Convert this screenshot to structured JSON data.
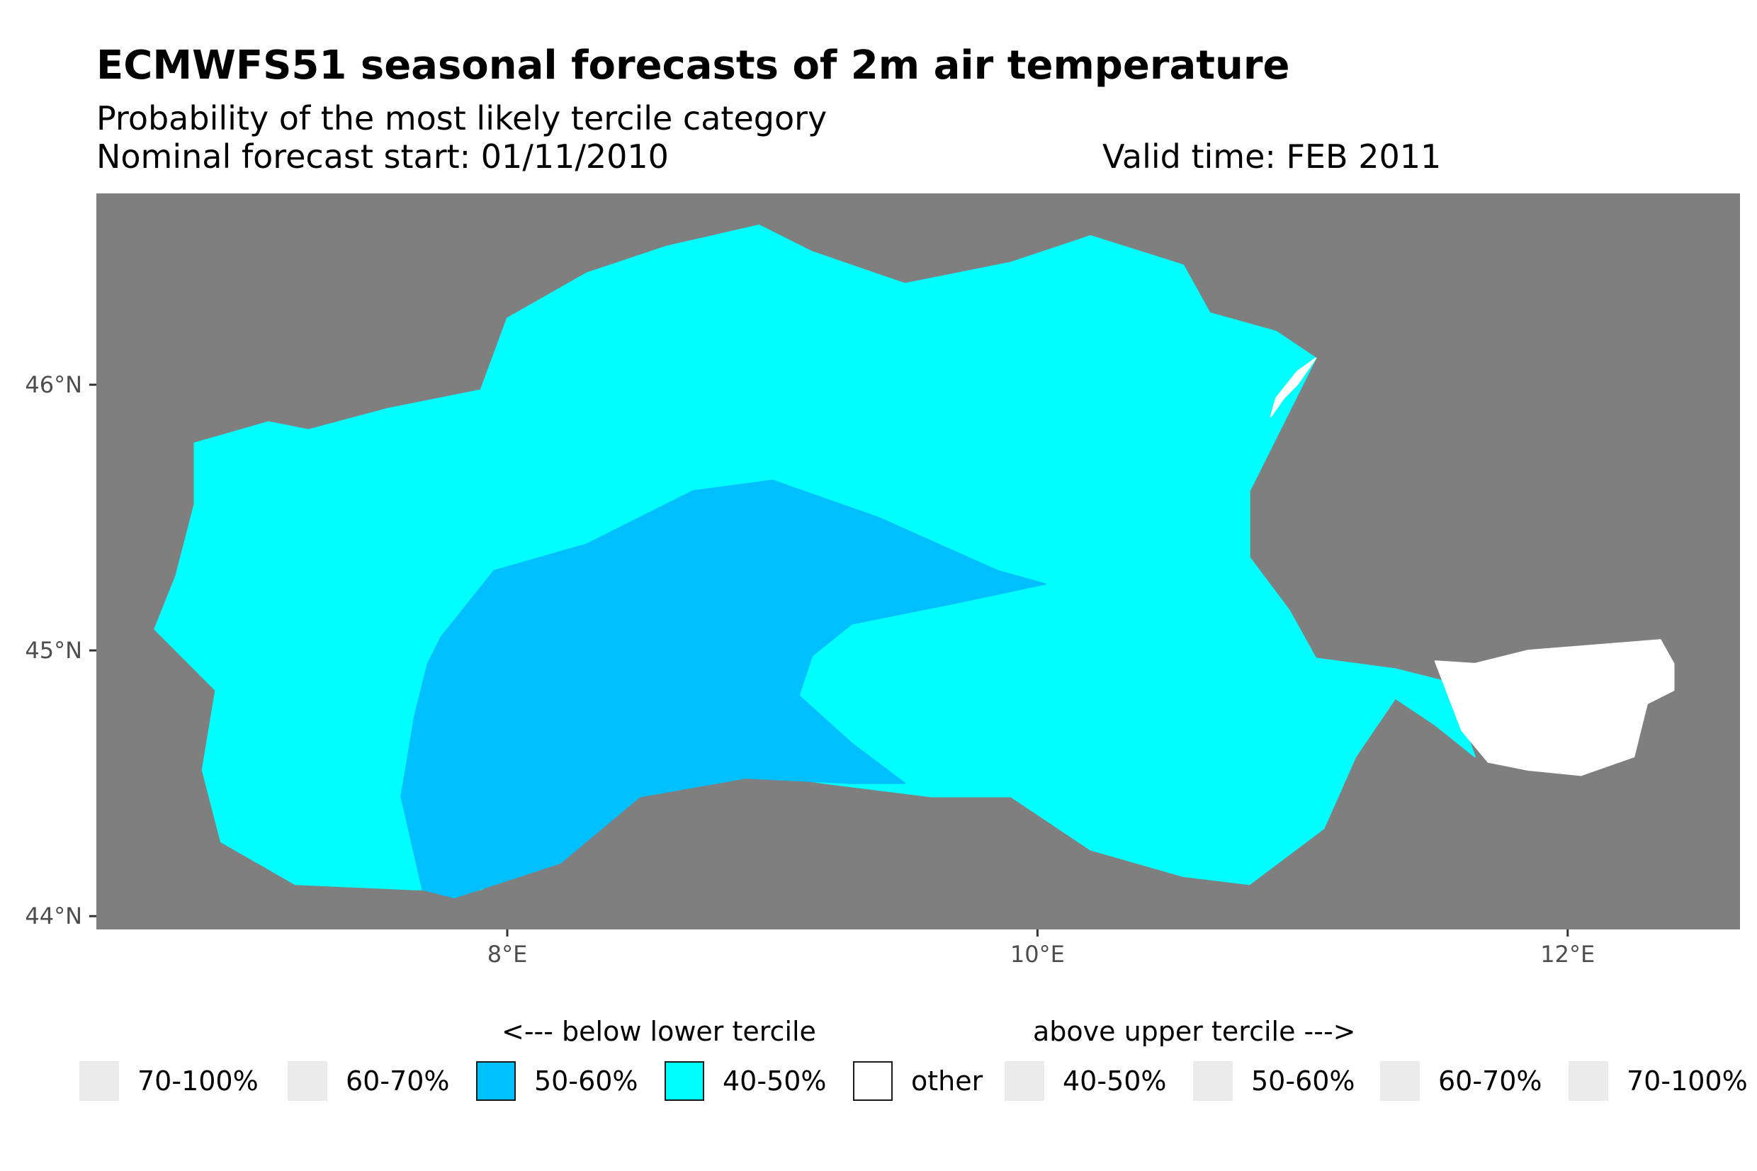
{
  "chart_data": {
    "type": "map",
    "title": "ECMWFS51 seasonal forecasts of 2m air temperature",
    "subtitle": "Probability of the most likely tercile category",
    "forecast_start": "Nominal forecast start: 01/11/2010",
    "valid_time": "Valid time: FEB 2011",
    "x_axis": {
      "range": [
        6.45,
        12.65
      ],
      "ticks": [
        8,
        10,
        12
      ],
      "tick_labels": [
        "8°E",
        "10°E",
        "12°E"
      ]
    },
    "y_axis": {
      "range": [
        43.95,
        46.72
      ],
      "ticks": [
        44,
        45,
        46
      ],
      "tick_labels": [
        "44°N",
        "45°N",
        "46°N"
      ]
    },
    "regions": [
      {
        "category": "40-50% below lower tercile",
        "color": "#00FFFF",
        "polygon": [
          [
            6.82,
            45.78
          ],
          [
            7.1,
            45.86
          ],
          [
            7.25,
            45.83
          ],
          [
            7.55,
            45.91
          ],
          [
            7.9,
            45.98
          ],
          [
            8.0,
            46.25
          ],
          [
            8.3,
            46.42
          ],
          [
            8.6,
            46.52
          ],
          [
            8.95,
            46.6
          ],
          [
            9.15,
            46.5
          ],
          [
            9.5,
            46.38
          ],
          [
            9.9,
            46.46
          ],
          [
            10.2,
            46.56
          ],
          [
            10.55,
            46.45
          ],
          [
            10.65,
            46.27
          ],
          [
            10.9,
            46.2
          ],
          [
            11.05,
            46.1
          ],
          [
            10.95,
            45.9
          ],
          [
            10.8,
            45.6
          ],
          [
            10.8,
            45.35
          ],
          [
            10.95,
            45.15
          ],
          [
            11.05,
            44.97
          ],
          [
            11.35,
            44.93
          ],
          [
            11.55,
            44.88
          ],
          [
            11.65,
            44.6
          ],
          [
            11.5,
            44.72
          ],
          [
            11.35,
            44.82
          ],
          [
            11.2,
            44.6
          ],
          [
            11.08,
            44.33
          ],
          [
            10.8,
            44.12
          ],
          [
            10.55,
            44.15
          ],
          [
            10.2,
            44.25
          ],
          [
            9.9,
            44.45
          ],
          [
            9.6,
            44.45
          ],
          [
            9.2,
            44.5
          ],
          [
            8.85,
            44.55
          ],
          [
            8.5,
            44.45
          ],
          [
            8.2,
            44.25
          ],
          [
            7.9,
            44.1
          ],
          [
            7.65,
            44.1
          ],
          [
            7.2,
            44.12
          ],
          [
            6.92,
            44.28
          ],
          [
            6.85,
            44.55
          ],
          [
            6.9,
            44.85
          ],
          [
            6.67,
            45.08
          ],
          [
            6.75,
            45.28
          ],
          [
            6.82,
            45.55
          ]
        ]
      },
      {
        "category": "50-60% below lower tercile",
        "color": "#00BFFF",
        "polygon": [
          [
            7.75,
            45.05
          ],
          [
            7.95,
            45.3
          ],
          [
            8.3,
            45.4
          ],
          [
            8.7,
            45.6
          ],
          [
            9.0,
            45.64
          ],
          [
            9.4,
            45.5
          ],
          [
            9.85,
            45.3
          ],
          [
            10.03,
            45.25
          ],
          [
            9.7,
            45.18
          ],
          [
            9.3,
            45.1
          ],
          [
            9.15,
            44.98
          ],
          [
            9.1,
            44.83
          ],
          [
            9.3,
            44.65
          ],
          [
            9.5,
            44.5
          ],
          [
            9.3,
            44.5
          ],
          [
            8.9,
            44.52
          ],
          [
            8.5,
            44.45
          ],
          [
            8.2,
            44.2
          ],
          [
            7.8,
            44.07
          ],
          [
            7.68,
            44.1
          ],
          [
            7.6,
            44.45
          ],
          [
            7.65,
            44.75
          ],
          [
            7.7,
            44.95
          ]
        ]
      },
      {
        "category": "other",
        "color": "#FFFFFF",
        "polygon": [
          [
            11.5,
            44.96
          ],
          [
            11.65,
            44.95
          ],
          [
            11.85,
            45.0
          ],
          [
            12.1,
            45.02
          ],
          [
            12.35,
            45.04
          ],
          [
            12.4,
            44.95
          ],
          [
            12.4,
            44.85
          ],
          [
            12.3,
            44.8
          ],
          [
            12.25,
            44.6
          ],
          [
            12.05,
            44.53
          ],
          [
            11.85,
            44.55
          ],
          [
            11.7,
            44.58
          ],
          [
            11.6,
            44.7
          ]
        ]
      },
      {
        "category": "other",
        "color": "#FFFFFF",
        "polygon": [
          [
            11.05,
            46.1
          ],
          [
            10.98,
            46.05
          ],
          [
            10.9,
            45.95
          ],
          [
            10.88,
            45.88
          ],
          [
            10.93,
            45.95
          ],
          [
            10.98,
            46.0
          ]
        ]
      }
    ],
    "legend": {
      "left_heading": "<--- below lower tercile",
      "right_heading": "above upper tercile --->",
      "entries": [
        {
          "label": "70-100%",
          "color": "#EBEBEB"
        },
        {
          "label": "60-70%",
          "color": "#EBEBEB"
        },
        {
          "label": "50-60%",
          "color": "#00BFFF"
        },
        {
          "label": "40-50%",
          "color": "#00FFFF"
        },
        {
          "label": "other",
          "color": "#FFFFFF"
        },
        {
          "label": "40-50%",
          "color": "#EBEBEB"
        },
        {
          "label": "50-60%",
          "color": "#EBEBEB"
        },
        {
          "label": "60-70%",
          "color": "#EBEBEB"
        },
        {
          "label": "70-100%",
          "color": "#EBEBEB"
        }
      ]
    },
    "panel_background": "#7F7F7F"
  }
}
